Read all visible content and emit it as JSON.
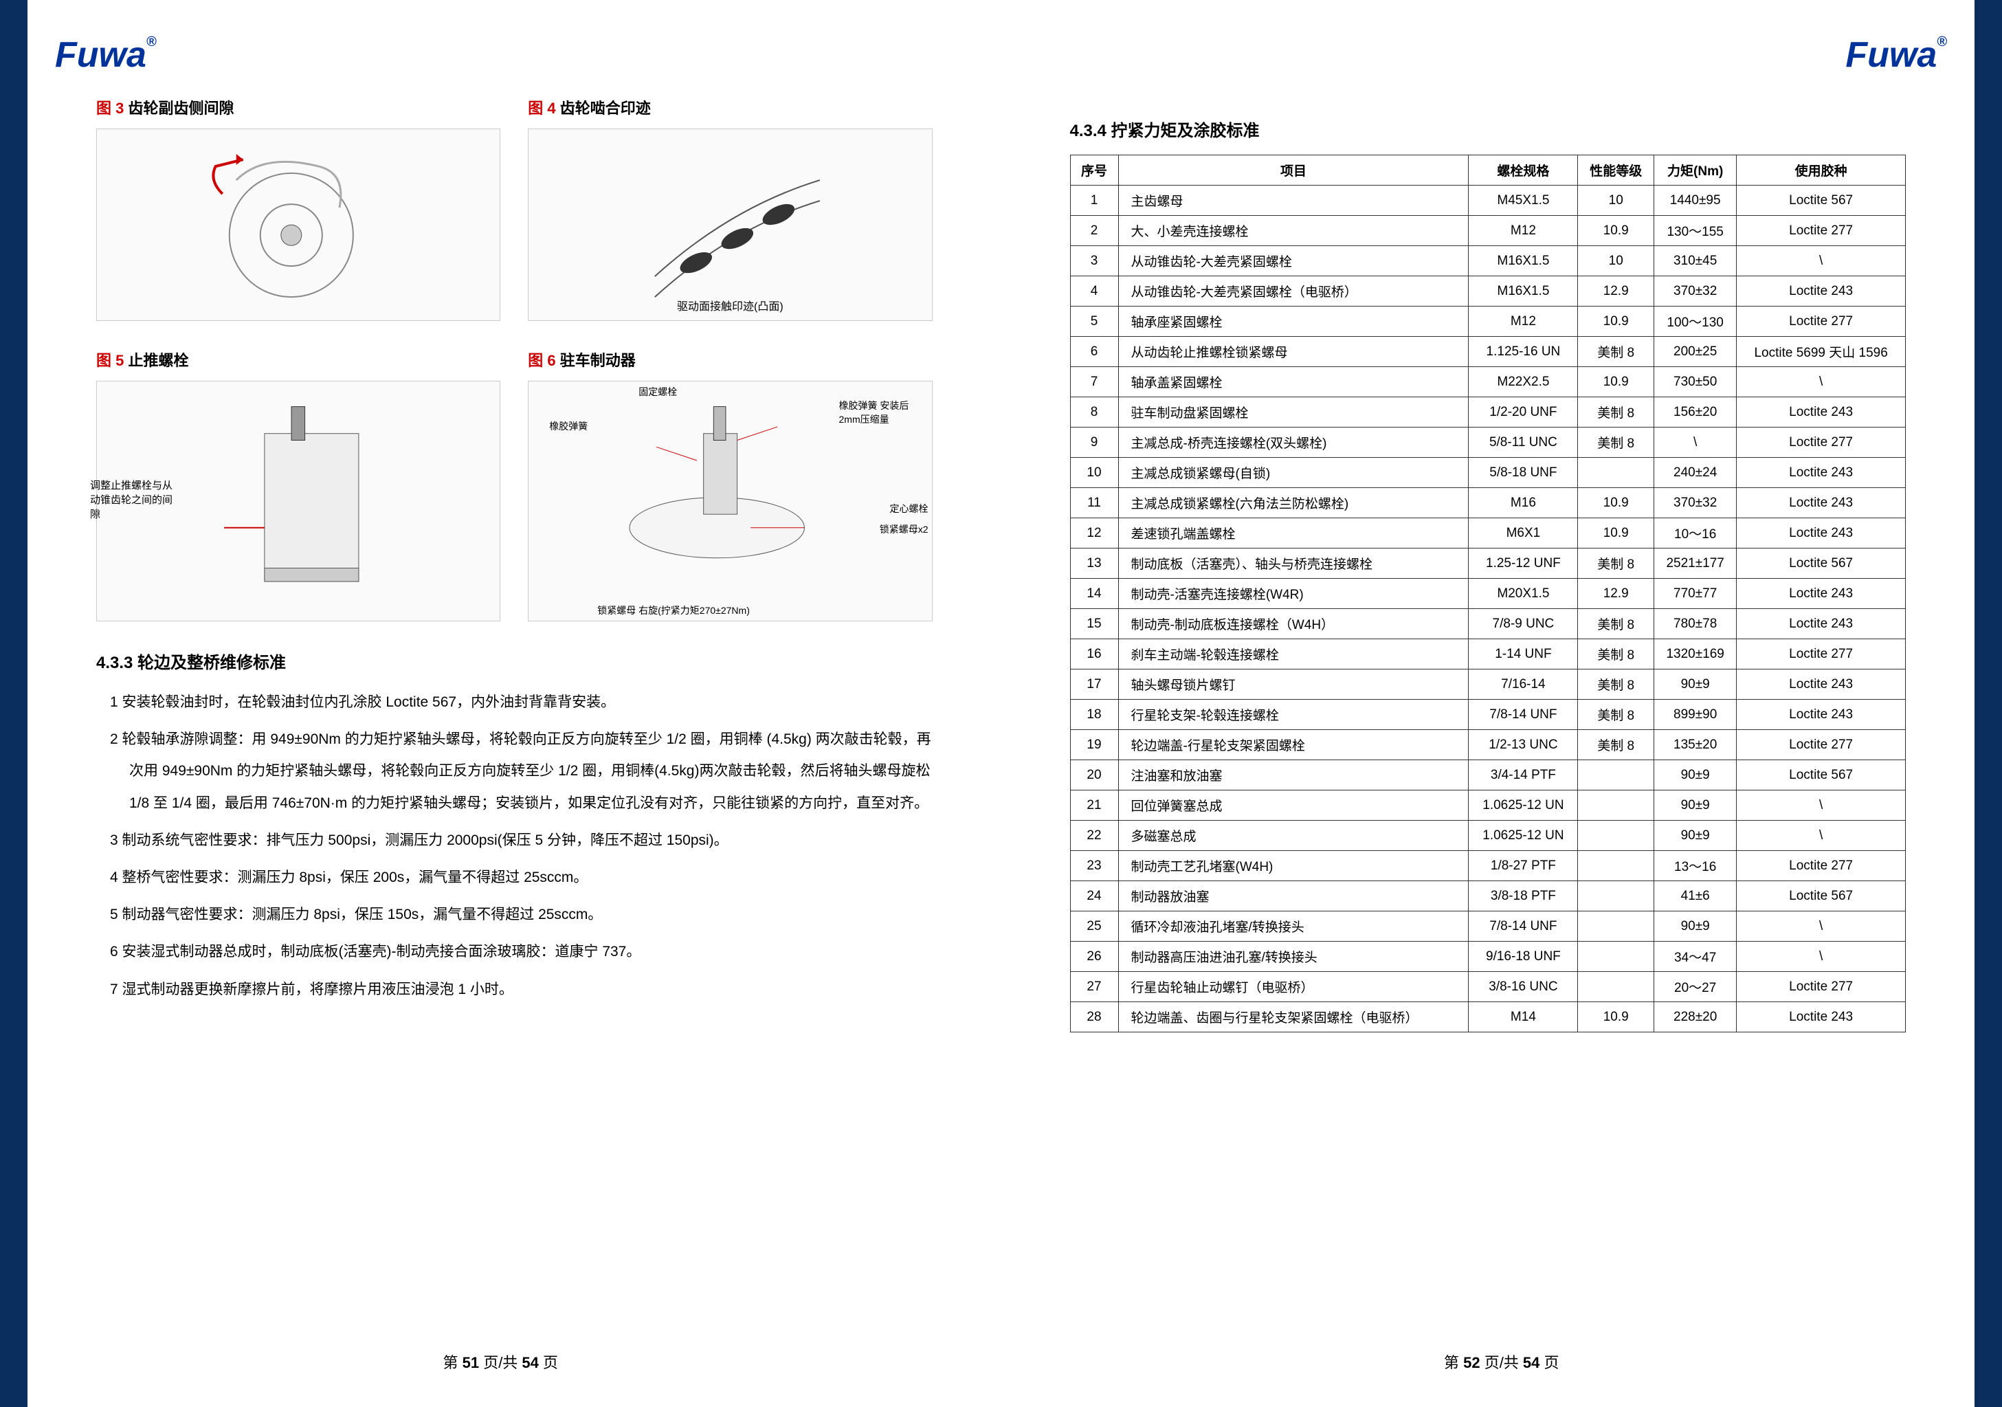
{
  "brand": "Fuwa",
  "reg": "®",
  "page_left": {
    "current": "51",
    "total": "54"
  },
  "page_right": {
    "current": "52",
    "total": "54"
  },
  "footer_prefix": "第 ",
  "footer_mid": " 页/共 ",
  "footer_suffix": " 页",
  "figures": {
    "f3": {
      "num": "图 3",
      "title": " 齿轮副齿侧间隙"
    },
    "f4": {
      "num": "图 4",
      "title": " 齿轮啮合印迹",
      "annot1": "驱动面接触印迹(凸面)"
    },
    "f5": {
      "num": "图 5",
      "title": " 止推螺栓",
      "annot1": "调整止推螺栓与从动锥齿轮之间的间隙"
    },
    "f6": {
      "num": "图 6",
      "title": " 驻车制动器",
      "a1": "固定螺栓",
      "a2": "橡胶弹簧",
      "a3": "橡胶弹簧 安装后2mm压缩量",
      "a4": "定心螺栓",
      "a5": "锁紧螺母x2",
      "a6": "锁紧螺母 右旋(拧紧力矩270±27Nm)"
    }
  },
  "section_433": {
    "heading": "4.3.3 轮边及整桥维修标准",
    "items": [
      "1 安装轮毂油封时，在轮毂油封位内孔涂胶 Loctite 567，内外油封背靠背安装。",
      "2 轮毂轴承游隙调整：用 949±90Nm 的力矩拧紧轴头螺母，将轮毂向正反方向旋转至少 1/2 圈，用铜棒 (4.5kg) 两次敲击轮毂，再次用 949±90Nm 的力矩拧紧轴头螺母，将轮毂向正反方向旋转至少 1/2 圈，用铜棒(4.5kg)两次敲击轮毂，然后将轴头螺母旋松 1/8 至 1/4 圈，最后用 746±70N·m 的力矩拧紧轴头螺母；安装锁片，如果定位孔没有对齐，只能往锁紧的方向拧，直至对齐。",
      "3 制动系统气密性要求：排气压力 500psi，测漏压力 2000psi(保压 5 分钟，降压不超过 150psi)。",
      "4 整桥气密性要求：测漏压力 8psi，保压 200s，漏气量不得超过 25sccm。",
      "5 制动器气密性要求：测漏压力 8psi，保压 150s，漏气量不得超过 25sccm。",
      "6 安装湿式制动器总成时，制动底板(活塞壳)-制动壳接合面涂玻璃胶：道康宁 737。",
      "7 湿式制动器更换新摩擦片前，将摩擦片用液压油浸泡 1 小时。"
    ]
  },
  "section_434": {
    "heading": "4.3.4 拧紧力矩及涂胶标准",
    "headers": [
      "序号",
      "项目",
      "螺栓规格",
      "性能等级",
      "力矩(Nm)",
      "使用胶种"
    ],
    "rows": [
      [
        "1",
        "主齿螺母",
        "M45X1.5",
        "10",
        "1440±95",
        "Loctite 567"
      ],
      [
        "2",
        "大、小差壳连接螺栓",
        "M12",
        "10.9",
        "130～155",
        "Loctite 277"
      ],
      [
        "3",
        "从动锥齿轮-大差壳紧固螺栓",
        "M16X1.5",
        "10",
        "310±45",
        "\\"
      ],
      [
        "4",
        "从动锥齿轮-大差壳紧固螺栓（电驱桥）",
        "M16X1.5",
        "12.9",
        "370±32",
        "Loctite 243"
      ],
      [
        "5",
        "轴承座紧固螺栓",
        "M12",
        "10.9",
        "100～130",
        "Loctite 277"
      ],
      [
        "6",
        "从动齿轮止推螺栓锁紧螺母",
        "1.125-16 UN",
        "美制 8",
        "200±25",
        "Loctite 5699 天山 1596"
      ],
      [
        "7",
        "轴承盖紧固螺栓",
        "M22X2.5",
        "10.9",
        "730±50",
        "\\"
      ],
      [
        "8",
        "驻车制动盘紧固螺栓",
        "1/2-20 UNF",
        "美制 8",
        "156±20",
        "Loctite 243"
      ],
      [
        "9",
        "主减总成-桥壳连接螺栓(双头螺栓)",
        "5/8-11 UNC",
        "美制 8",
        "\\",
        "Loctite 277"
      ],
      [
        "10",
        "主减总成锁紧螺母(自锁)",
        "5/8-18 UNF",
        "",
        "240±24",
        "Loctite 243"
      ],
      [
        "11",
        "主减总成锁紧螺栓(六角法兰防松螺栓)",
        "M16",
        "10.9",
        "370±32",
        "Loctite 243"
      ],
      [
        "12",
        "差速锁孔端盖螺栓",
        "M6X1",
        "10.9",
        "10～16",
        "Loctite 243"
      ],
      [
        "13",
        "制动底板（活塞壳）、轴头与桥壳连接螺栓",
        "1.25-12 UNF",
        "美制 8",
        "2521±177",
        "Loctite 567"
      ],
      [
        "14",
        "制动壳-活塞壳连接螺栓(W4R)",
        "M20X1.5",
        "12.9",
        "770±77",
        "Loctite 243"
      ],
      [
        "15",
        "制动壳-制动底板连接螺栓（W4H）",
        "7/8-9 UNC",
        "美制 8",
        "780±78",
        "Loctite 243"
      ],
      [
        "16",
        "刹车主动端-轮毂连接螺栓",
        "1-14 UNF",
        "美制 8",
        "1320±169",
        "Loctite 277"
      ],
      [
        "17",
        "轴头螺母锁片螺钉",
        "7/16-14",
        "美制 8",
        "90±9",
        "Loctite 243"
      ],
      [
        "18",
        "行星轮支架-轮毂连接螺栓",
        "7/8-14 UNF",
        "美制 8",
        "899±90",
        "Loctite 243"
      ],
      [
        "19",
        "轮边端盖-行星轮支架紧固螺栓",
        "1/2-13 UNC",
        "美制 8",
        "135±20",
        "Loctite 277"
      ],
      [
        "20",
        "注油塞和放油塞",
        "3/4-14 PTF",
        "",
        "90±9",
        "Loctite 567"
      ],
      [
        "21",
        "回位弹簧塞总成",
        "1.0625-12 UN",
        "",
        "90±9",
        "\\"
      ],
      [
        "22",
        "多磁塞总成",
        "1.0625-12 UN",
        "",
        "90±9",
        "\\"
      ],
      [
        "23",
        "制动壳工艺孔堵塞(W4H)",
        "1/8-27 PTF",
        "",
        "13～16",
        "Loctite 277"
      ],
      [
        "24",
        "制动器放油塞",
        "3/8-18 PTF",
        "",
        "41±6",
        "Loctite 567"
      ],
      [
        "25",
        "循环冷却液油孔堵塞/转换接头",
        "7/8-14 UNF",
        "",
        "90±9",
        "\\"
      ],
      [
        "26",
        "制动器高压油进油孔塞/转换接头",
        "9/16-18 UNF",
        "",
        "34～47",
        "\\"
      ],
      [
        "27",
        "行星齿轮轴止动螺钉（电驱桥）",
        "3/8-16 UNC",
        "",
        "20～27",
        "Loctite 277"
      ],
      [
        "28",
        "轮边端盖、齿圈与行星轮支架紧固螺栓（电驱桥）",
        "M14",
        "10.9",
        "228±20",
        "Loctite 243"
      ]
    ]
  },
  "colors": {
    "stripe": "#0a2f5e",
    "brand": "#003399",
    "fignum": "#c00000",
    "border": "#333333",
    "text": "#000000"
  }
}
